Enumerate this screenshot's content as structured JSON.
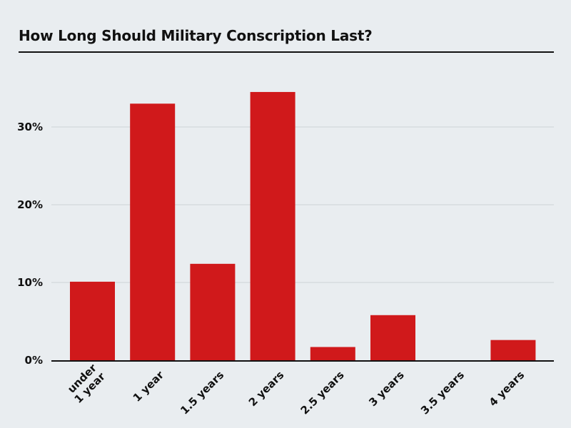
{
  "chart_data": {
    "type": "bar",
    "title": "How Long Should Military Conscription Last?",
    "categories": [
      [
        "under",
        "1 year"
      ],
      [
        "1 year"
      ],
      [
        "1.5 years"
      ],
      [
        "2 years"
      ],
      [
        "2.5 years"
      ],
      [
        "3 years"
      ],
      [
        "3.5 years"
      ],
      [
        "4 years"
      ]
    ],
    "values": [
      10.1,
      33.0,
      12.4,
      34.5,
      1.7,
      5.8,
      0,
      2.6
    ],
    "yticks": [
      0,
      10,
      20,
      30
    ],
    "ytick_labels": [
      "0%",
      "10%",
      "20%",
      "30%"
    ],
    "ylim": [
      0,
      40
    ],
    "grid": true,
    "bar_color": "#d0191b",
    "background": "#e9edf0"
  }
}
